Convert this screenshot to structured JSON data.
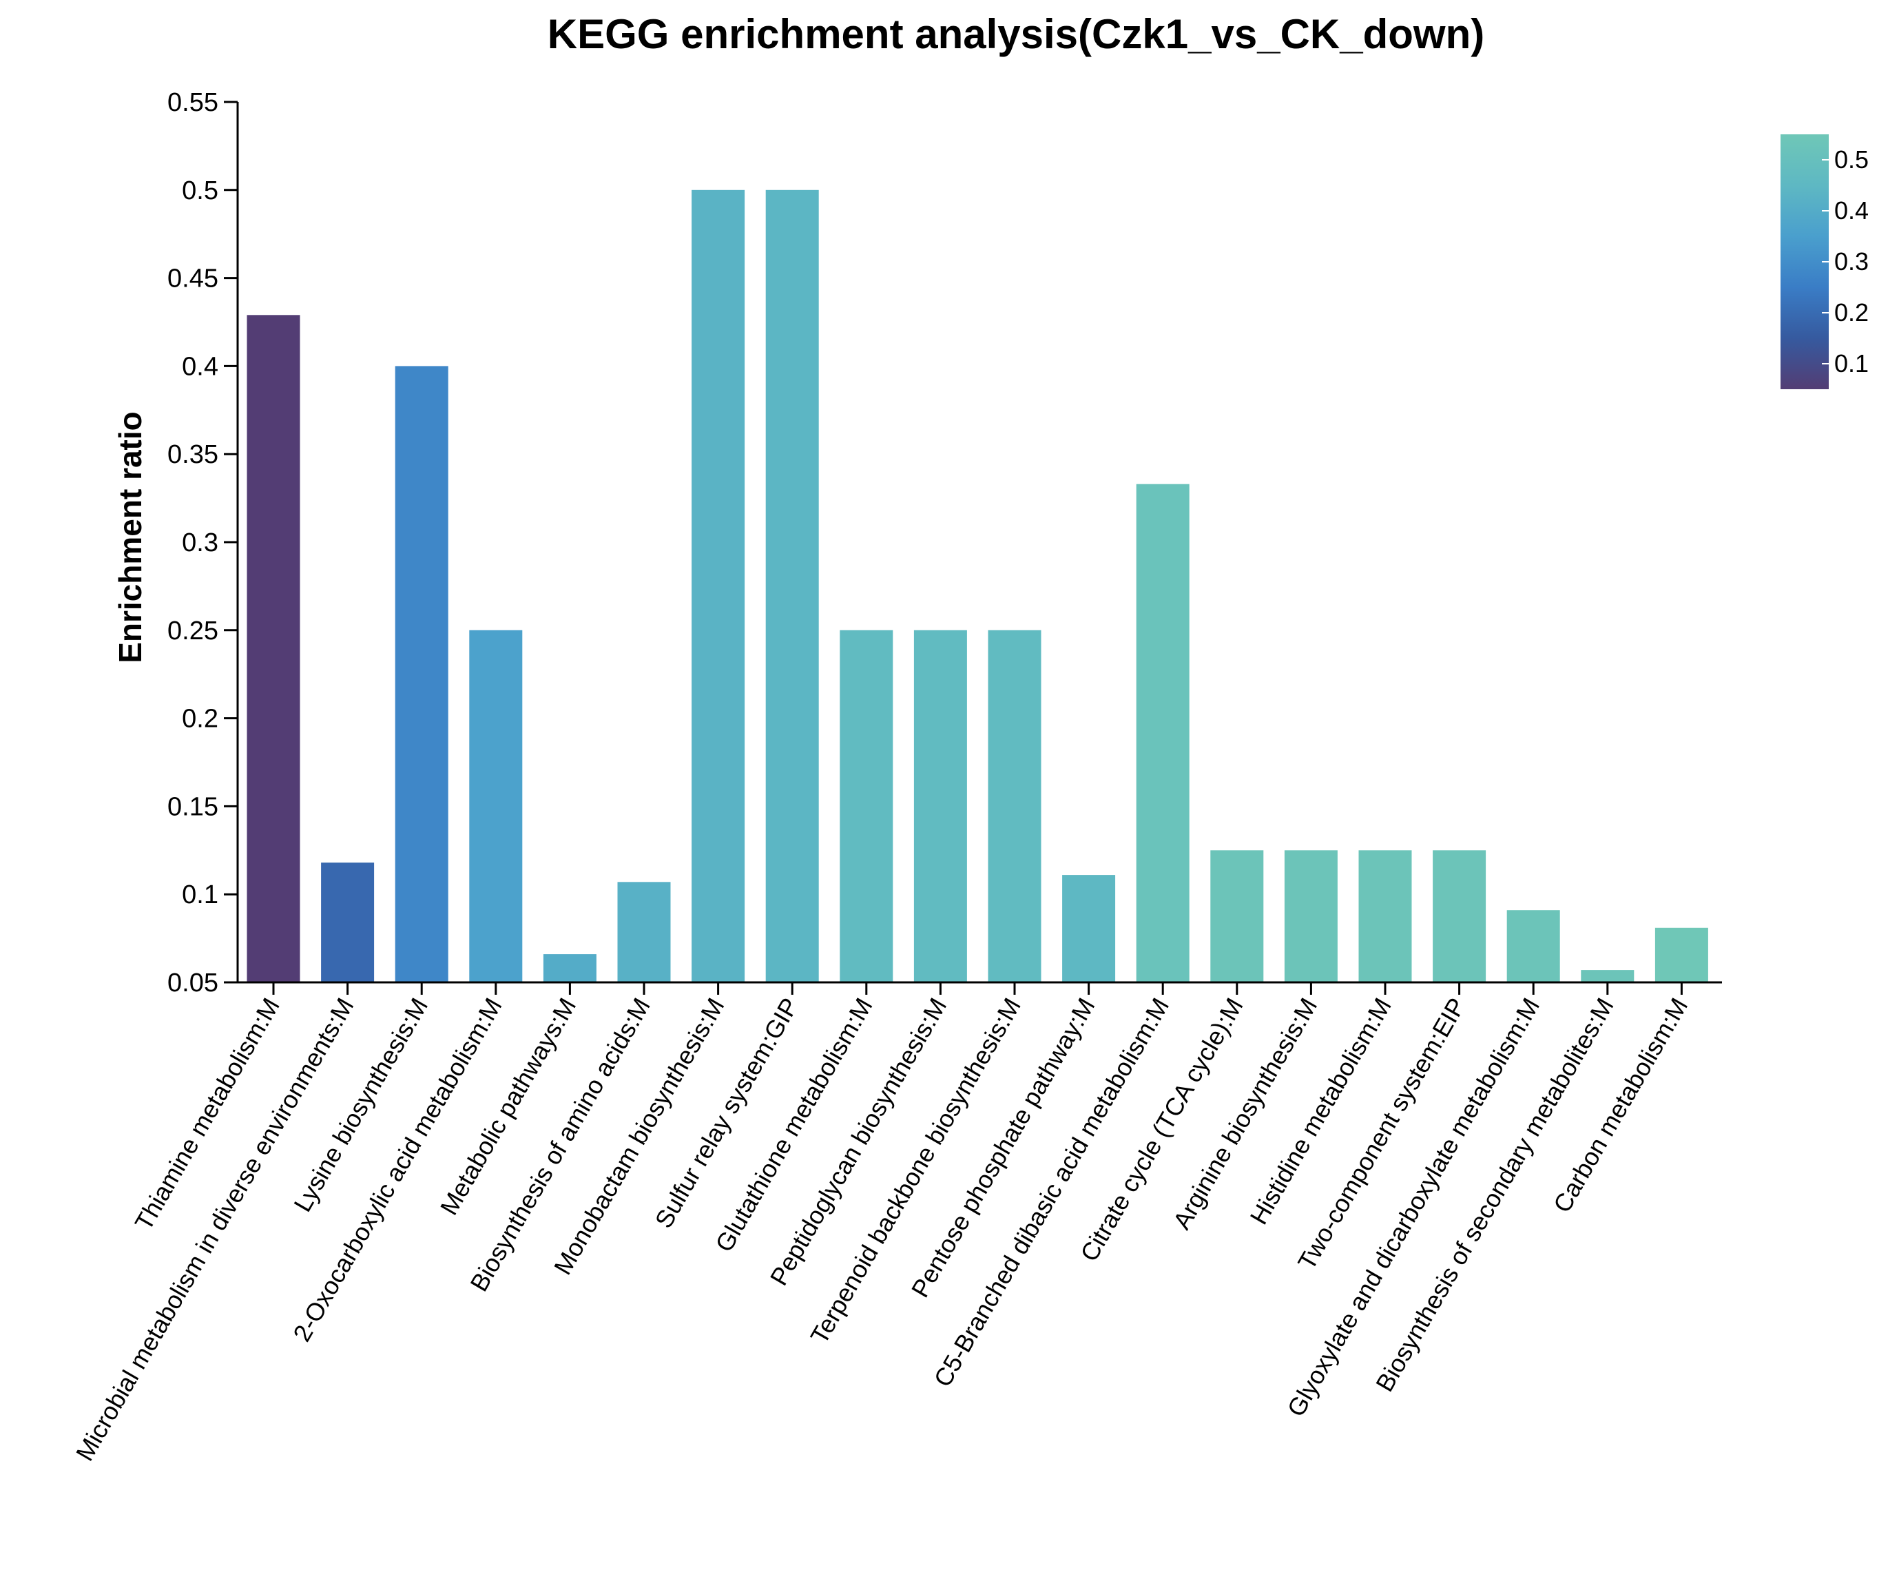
{
  "chart_data": {
    "type": "bar",
    "title": "KEGG enrichment analysis(Czk1_vs_CK_down)",
    "xlabel": "",
    "ylabel": "Enrichment ratio",
    "ylim": [
      0.05,
      0.55
    ],
    "yticks": [
      "0.05",
      "0.1",
      "0.15",
      "0.2",
      "0.25",
      "0.3",
      "0.35",
      "0.4",
      "0.45",
      "0.5",
      "0.55"
    ],
    "categories": [
      "Thiamine metabolism:M",
      "Microbial metabolism in diverse environments:M",
      "Lysine biosynthesis:M",
      "2-Oxocarboxylic acid metabolism:M",
      "Metabolic pathways:M",
      "Biosynthesis of amino acids:M",
      "Monobactam biosynthesis:M",
      "Sulfur relay system:GIP",
      "Glutathione metabolism:M",
      "Peptidoglycan biosynthesis:M",
      "Terpenoid backbone biosynthesis:M",
      "Pentose phosphate pathway:M",
      "C5-Branched dibasic acid metabolism:M",
      "Citrate cycle (TCA cycle):M",
      "Arginine biosynthesis:M",
      "Histidine metabolism:M",
      "Two-component system:EIP",
      "Glyoxylate and dicarboxylate metabolism:M",
      "Biosynthesis of secondary metabolites:M",
      "Carbon metabolism:M"
    ],
    "values": [
      0.429,
      0.118,
      0.4,
      0.25,
      0.066,
      0.107,
      0.5,
      0.5,
      0.25,
      0.25,
      0.25,
      0.111,
      0.333,
      0.125,
      0.125,
      0.125,
      0.125,
      0.091,
      0.057,
      0.081
    ],
    "color_values": [
      0.05,
      0.19,
      0.28,
      0.36,
      0.4,
      0.42,
      0.43,
      0.44,
      0.47,
      0.47,
      0.47,
      0.45,
      0.52,
      0.53,
      0.53,
      0.53,
      0.53,
      0.53,
      0.53,
      0.55
    ],
    "colorbar": {
      "range": [
        0.05,
        0.55
      ],
      "ticks": [
        "0.1",
        "0.2",
        "0.3",
        "0.4",
        "0.5"
      ],
      "stops": [
        "#533d74",
        "#365a9f",
        "#3a7dc6",
        "#4a9fcd",
        "#5eb8c3",
        "#6fc7b7"
      ],
      "placement": "top-right"
    }
  }
}
